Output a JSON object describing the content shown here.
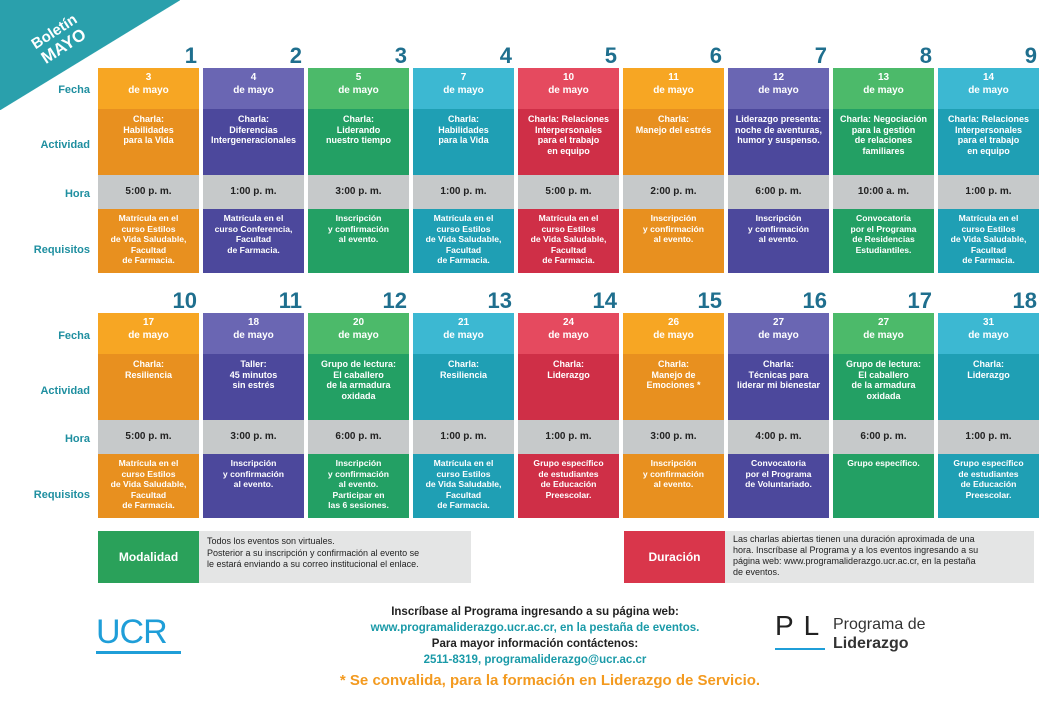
{
  "ribbon": {
    "line1": "Boletín",
    "line2": "MAYO"
  },
  "row_labels": {
    "fecha": "Fecha",
    "actividad": "Actividad",
    "hora": "Hora",
    "requisitos": "Requisitos"
  },
  "colors": {
    "orange": "#f39a1f",
    "purple": "#5a56a6",
    "green": "#35a857",
    "cyan": "#2fb1c9",
    "red": "#df3a50",
    "orange2": "#ef8f1c",
    "purple2": "#4f4aa0",
    "green2": "#2aa15a",
    "teal": "#1fa0b2"
  },
  "row1": [
    {
      "num": "1",
      "fecha": "3\nde mayo",
      "actividad": "Charla:\nHabilidades\npara la Vida",
      "hora": "5:00 p. m.",
      "req": "Matrícula en el\ncurso Estilos\nde Vida Saludable,\nFacultad\nde Farmacia.",
      "top": "#f7a623",
      "bot": "#e8901f"
    },
    {
      "num": "2",
      "fecha": "4\nde mayo",
      "actividad": "Charla:\nDiferencias\nIntergeneracionales",
      "hora": "1:00 p. m.",
      "req": "Matrícula en el\ncurso Conferencia,\nFacultad\nde Farmacia.",
      "top": "#6a66b3",
      "bot": "#4c489c"
    },
    {
      "num": "3",
      "fecha": "5\nde mayo",
      "actividad": "Charla:\nLiderando\nnuestro tiempo",
      "hora": "3:00 p. m.",
      "req": "Inscripción\ny confirmación\nal evento.",
      "top": "#4cba6a",
      "bot": "#23a064"
    },
    {
      "num": "4",
      "fecha": "7\nde mayo",
      "actividad": "Charla:\nHabilidades\npara la Vida",
      "hora": "1:00 p. m.",
      "req": "Matrícula en el\ncurso Estilos\nde Vida Saludable,\nFacultad\nde Farmacia.",
      "top": "#3cb8d2",
      "bot": "#1f9fb4"
    },
    {
      "num": "5",
      "fecha": "10\nde mayo",
      "actividad": "Charla: Relaciones\nInterpersonales\npara el trabajo\nen equipo",
      "hora": "5:00 p. m.",
      "req": "Matrícula en el\ncurso Estilos\nde Vida Saludable,\nFacultad\nde Farmacia.",
      "top": "#e54a5f",
      "bot": "#cf2f47"
    },
    {
      "num": "6",
      "fecha": "11\nde mayo",
      "actividad": "Charla:\nManejo del estrés",
      "hora": "2:00 p. m.",
      "req": "Inscripción\ny confirmación\nal evento.",
      "top": "#f7a623",
      "bot": "#e8901f"
    },
    {
      "num": "7",
      "fecha": "12\nde mayo",
      "actividad": "Liderazgo presenta:\nnoche de aventuras,\nhumor y suspenso.",
      "hora": "6:00 p. m.",
      "req": "Inscripción\ny confirmación\nal evento.",
      "top": "#6a66b3",
      "bot": "#4c489c"
    },
    {
      "num": "8",
      "fecha": "13\nde mayo",
      "actividad": "Charla: Negociación\npara la gestión\nde relaciones\nfamiliares",
      "hora": "10:00 a. m.",
      "req": "Convocatoria\npor el Programa\nde Residencias\nEstudiantiles.",
      "top": "#4cba6a",
      "bot": "#23a064"
    },
    {
      "num": "9",
      "fecha": "14\nde mayo",
      "actividad": "Charla: Relaciones\nInterpersonales\npara el trabajo\nen equipo",
      "hora": "1:00 p. m.",
      "req": "Matrícula en el\ncurso Estilos\nde Vida Saludable,\nFacultad\nde Farmacia.",
      "top": "#3cb8d2",
      "bot": "#1f9fb4"
    }
  ],
  "row2": [
    {
      "num": "10",
      "fecha": "17\nde mayo",
      "actividad": "Charla:\nResiliencia",
      "hora": "5:00 p. m.",
      "req": "Matrícula en el\ncurso Estilos\nde Vida Saludable,\nFacultad\nde Farmacia.",
      "top": "#f7a623",
      "bot": "#e8901f"
    },
    {
      "num": "11",
      "fecha": "18\nde mayo",
      "actividad": "Taller:\n45 minutos\nsin estrés",
      "hora": "3:00 p. m.",
      "req": "Inscripción\ny confirmación\nal evento.",
      "top": "#6a66b3",
      "bot": "#4c489c"
    },
    {
      "num": "12",
      "fecha": "20\nde mayo",
      "actividad": "Grupo de lectura:\nEl caballero\nde la armadura\noxidada",
      "hora": "6:00 p. m.",
      "req": "Inscripción\ny confirmación\nal evento.\nParticipar en\nlas 6 sesiones.",
      "top": "#4cba6a",
      "bot": "#23a064"
    },
    {
      "num": "13",
      "fecha": "21\nde mayo",
      "actividad": "Charla:\nResiliencia",
      "hora": "1:00 p. m.",
      "req": "Matrícula en el\ncurso Estilos\nde Vida Saludable,\nFacultad\nde Farmacia.",
      "top": "#3cb8d2",
      "bot": "#1f9fb4"
    },
    {
      "num": "14",
      "fecha": "24\nde mayo",
      "actividad": "Charla:\nLiderazgo",
      "hora": "1:00 p. m.",
      "req": "Grupo específico\nde estudiantes\nde Educación\nPreescolar.",
      "top": "#e54a5f",
      "bot": "#cf2f47"
    },
    {
      "num": "15",
      "fecha": "26\nde mayo",
      "actividad": "Charla:\nManejo de\nEmociones *",
      "hora": "3:00 p. m.",
      "req": "Inscripción\ny confirmación\nal evento.",
      "top": "#f7a623",
      "bot": "#e8901f"
    },
    {
      "num": "16",
      "fecha": "27\nde mayo",
      "actividad": "Charla:\nTécnicas para\nliderar mi bienestar",
      "hora": "4:00 p. m.",
      "req": "Convocatoria\npor el Programa\nde Voluntariado.",
      "top": "#6a66b3",
      "bot": "#4c489c"
    },
    {
      "num": "17",
      "fecha": "27\nde mayo",
      "actividad": "Grupo de lectura:\nEl caballero\nde la armadura\noxidada",
      "hora": "6:00 p. m.",
      "req": "Grupo específico.",
      "top": "#4cba6a",
      "bot": "#23a064"
    },
    {
      "num": "18",
      "fecha": "31\nde mayo",
      "actividad": "Charla:\nLiderazgo",
      "hora": "1:00 p. m.",
      "req": "Grupo específico\nde estudiantes\nde Educación\nPreescolar.",
      "top": "#3cb8d2",
      "bot": "#1f9fb4"
    }
  ],
  "modalidad": {
    "label": "Modalidad",
    "text": "Todos los eventos son virtuales.\nPosterior a su inscripción y confirmación al evento se\nle estará enviando a su correo institucional el enlace.",
    "color": "#2aa15a"
  },
  "duracion": {
    "label": "Duración",
    "text": "Las charlas abiertas tienen una duración aproximada de una\nhora. Inscríbase al Programa y a los eventos ingresando a su\npágina web: www.programaliderazgo.ucr.ac.cr, en la pestaña\nde eventos.",
    "color": "#d9364b"
  },
  "footer": {
    "line1": "Inscríbase al Programa ingresando a su página web:",
    "line2": "www.programaliderazgo.ucr.ac.cr, en la pestaña de eventos.",
    "line3": "Para mayor información contáctenos:",
    "line4": "2511-8319, programaliderazgo@ucr.ac.cr",
    "note": "* Se convalida, para la formación en Liderazgo de Servicio."
  },
  "logos": {
    "ucr": "UCR",
    "pl_letters": "PL",
    "pl_line1": "Programa de",
    "pl_line2": "Liderazgo"
  }
}
